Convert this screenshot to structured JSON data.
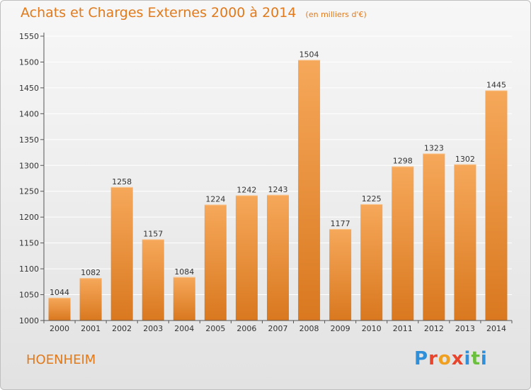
{
  "header": {
    "title": "Achats et Charges Externes 2000 à 2014",
    "unit": "(en milliers d'€)"
  },
  "footer": {
    "commune": "HOENHEIM",
    "logo": "Proxiti"
  },
  "colors": {
    "title": "#e07a1c",
    "bar_top": "#f6a85a",
    "bar_bottom": "#d9781f",
    "grid": "#ffffff"
  },
  "chart_data": {
    "type": "bar",
    "title": "Achats et Charges Externes 2000 à 2014",
    "subtitle": "(en milliers d'€)",
    "categories": [
      "2000",
      "2001",
      "2002",
      "2003",
      "2004",
      "2005",
      "2006",
      "2007",
      "2008",
      "2009",
      "2010",
      "2011",
      "2012",
      "2013",
      "2014"
    ],
    "values": [
      1044,
      1082,
      1258,
      1157,
      1084,
      1224,
      1242,
      1243,
      1504,
      1177,
      1225,
      1298,
      1323,
      1302,
      1445
    ],
    "ylim": [
      1000,
      1550
    ],
    "yticks": [
      1000,
      1050,
      1100,
      1150,
      1200,
      1250,
      1300,
      1350,
      1400,
      1450,
      1500,
      1550
    ],
    "xlabel": "",
    "ylabel": "",
    "grid": true,
    "legend": "none",
    "data_labels": true
  }
}
